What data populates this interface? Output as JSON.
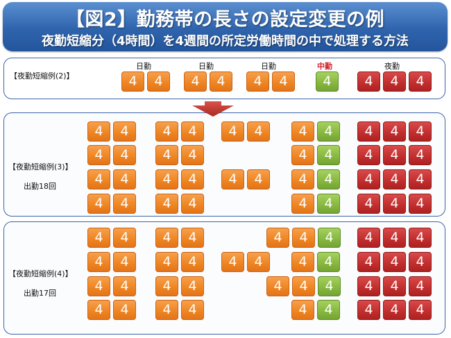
{
  "header": {
    "title": "【図2】勤務帯の長さの設定変更の例",
    "subtitle": "夜勤短縮分（4時間）を4週間の所定労働時間の中で処理する方法"
  },
  "example2": {
    "label": "【夜勤短縮例(2)】",
    "shift_labels": {
      "day1": "日勤",
      "day2": "日勤",
      "day3": "日勤",
      "mid": "中勤",
      "night": "夜勤"
    }
  },
  "example3": {
    "label": "【夜勤短縮例(3)】",
    "count": "出勤18回"
  },
  "example4": {
    "label": "【夜勤短縮例(4)】",
    "count": "出勤17回"
  },
  "cell_value": "4",
  "colors": {
    "day": "#ee8421",
    "mid": "#86b73f",
    "night": "#c12d2d",
    "accent": "#2f64ad",
    "mid_label": "#d0202a"
  },
  "grids": {
    "example2": [
      [
        [
          "day",
          "day"
        ],
        [
          "day",
          "day"
        ],
        [
          "day",
          "day"
        ],
        [
          "mid"
        ],
        [
          "night",
          "night",
          "night"
        ]
      ]
    ],
    "example3": [
      [
        [
          "day",
          "day"
        ],
        [
          "day",
          "day"
        ],
        [
          "day",
          "day"
        ],
        [
          "day",
          "mid"
        ],
        [
          "night",
          "night",
          "night"
        ]
      ],
      [
        [
          "day",
          "day"
        ],
        [
          "day",
          "day"
        ],
        [],
        [
          "day",
          "mid"
        ],
        [
          "night",
          "night",
          "night"
        ]
      ],
      [
        [
          "day",
          "day"
        ],
        [
          "day",
          "day"
        ],
        [
          "day",
          "day"
        ],
        [
          "day",
          "mid"
        ],
        [
          "night",
          "night",
          "night"
        ]
      ],
      [
        [
          "day",
          "day"
        ],
        [
          "day",
          "day"
        ],
        [],
        [
          "day",
          "mid"
        ],
        [
          "night",
          "night",
          "night"
        ]
      ]
    ],
    "example4": [
      [
        [
          "day",
          "day"
        ],
        [
          "day",
          "day"
        ],
        [
          "day",
          "day",
          "mid"
        ],
        [
          "night",
          "night",
          "night"
        ]
      ],
      [
        [
          "day",
          "day"
        ],
        [
          "day",
          "day"
        ],
        [
          "day",
          "day"
        ],
        [
          "day",
          "mid"
        ],
        [
          "night",
          "night",
          "night"
        ]
      ],
      [
        [
          "day",
          "day"
        ],
        [
          "day",
          "day"
        ],
        [
          "day",
          "day",
          "mid"
        ],
        [
          "night",
          "night",
          "night"
        ]
      ],
      [
        [
          "day",
          "day"
        ],
        [
          "day",
          "day"
        ],
        [
          "day",
          "mid"
        ],
        [
          "night",
          "night",
          "night"
        ]
      ]
    ]
  }
}
